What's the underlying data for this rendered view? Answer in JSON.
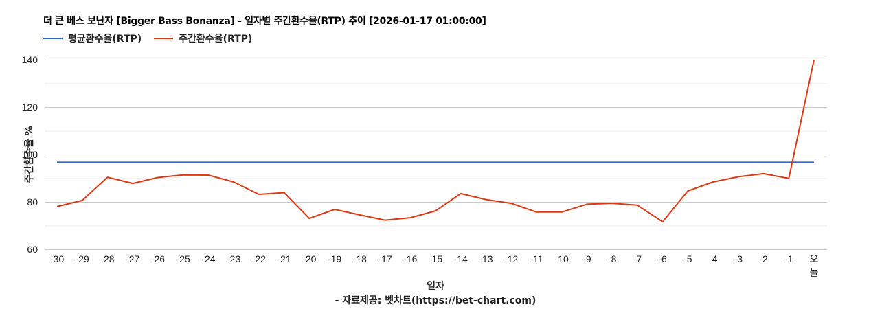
{
  "title": "더 큰 베스 보난자 [Bigger Bass Bonanza] - 일자별 주간환수율(RTP) 추이 [2026-01-17 01:00:00]",
  "legend": [
    {
      "label": "평균환수율(RTP)",
      "color": "#3366cc"
    },
    {
      "label": "주간환수율(RTP)",
      "color": "#dc3912"
    }
  ],
  "axes": {
    "ylabel": "주간환수율 %",
    "xlabel": "일자",
    "source": "- 자료제공: 벳차트(https://bet-chart.com)"
  },
  "chart_data": {
    "type": "line",
    "title": "더 큰 베스 보난자 [Bigger Bass Bonanza] - 일자별 주간환수율(RTP) 추이 [2026-01-17 01:00:00]",
    "xlabel": "일자",
    "ylabel": "주간환수율 %",
    "ylim": [
      60,
      140
    ],
    "yticks": [
      60,
      80,
      100,
      120,
      140
    ],
    "grid": true,
    "legend_position": "top-left",
    "categories": [
      "-30",
      "-29",
      "-28",
      "-27",
      "-26",
      "-25",
      "-24",
      "-23",
      "-22",
      "-21",
      "-20",
      "-19",
      "-18",
      "-17",
      "-16",
      "-15",
      "-14",
      "-13",
      "-12",
      "-11",
      "-10",
      "-9",
      "-8",
      "-7",
      "-6",
      "-5",
      "-4",
      "-3",
      "-2",
      "-1",
      "오늘"
    ],
    "series": [
      {
        "name": "평균환수율(RTP)",
        "color": "#3366cc",
        "values": [
          96.7,
          96.7,
          96.7,
          96.7,
          96.7,
          96.7,
          96.7,
          96.7,
          96.7,
          96.7,
          96.7,
          96.7,
          96.7,
          96.7,
          96.7,
          96.7,
          96.7,
          96.7,
          96.7,
          96.7,
          96.7,
          96.7,
          96.7,
          96.7,
          96.7,
          96.7,
          96.7,
          96.7,
          96.7,
          96.7,
          96.7
        ]
      },
      {
        "name": "주간환수율(RTP)",
        "color": "#dc3912",
        "values": [
          78.0,
          80.6,
          90.4,
          87.8,
          90.3,
          91.4,
          91.3,
          88.4,
          83.2,
          83.9,
          73.0,
          76.8,
          74.5,
          72.3,
          73.3,
          76.2,
          83.5,
          81.0,
          79.4,
          75.7,
          75.7,
          79.0,
          79.4,
          78.6,
          71.6,
          84.6,
          88.4,
          90.6,
          91.9,
          89.9,
          140.0
        ]
      }
    ],
    "annotations": [
      "- 자료제공: 벳차트(https://bet-chart.com)"
    ]
  }
}
